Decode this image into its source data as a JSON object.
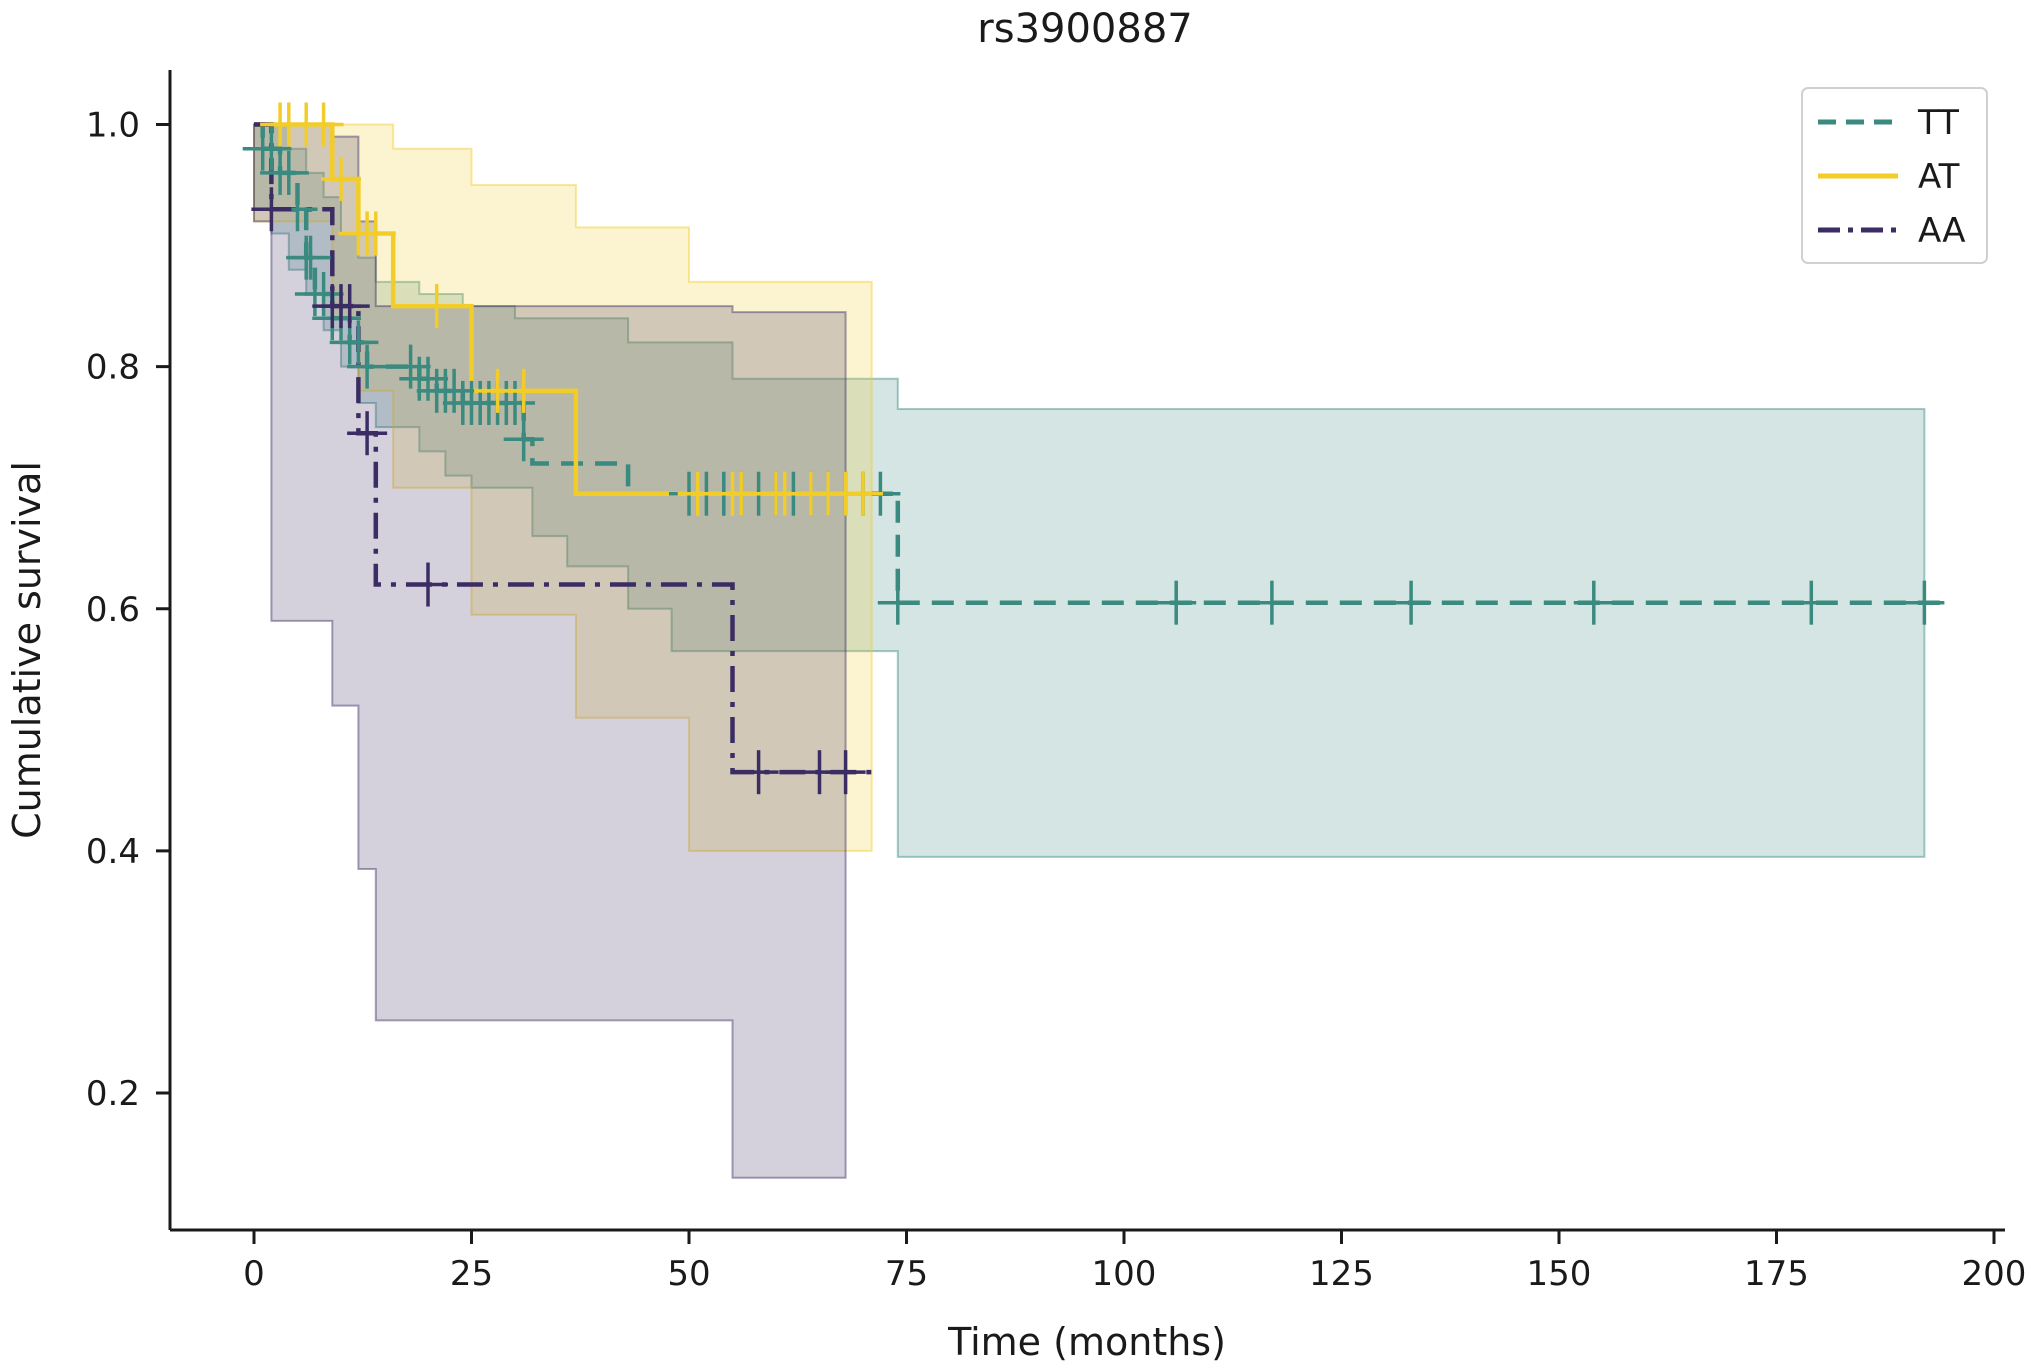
{
  "chart_data": {
    "type": "line",
    "title": "rs3900887",
    "xlabel": "Time (months)",
    "ylabel": "Cumulative survival",
    "xlim": [
      -10,
      202
    ],
    "ylim": [
      0.1,
      1.05
    ],
    "xticks": [
      0,
      25,
      50,
      75,
      100,
      125,
      150,
      175,
      200
    ],
    "yticks": [
      0.2,
      0.4,
      0.6,
      0.8,
      1.0
    ],
    "xtick_labels": [
      "0",
      "25",
      "50",
      "75",
      "100",
      "125",
      "150",
      "175",
      "200"
    ],
    "ytick_labels": [
      "0.2",
      "0.4",
      "0.6",
      "0.8",
      "1.0"
    ],
    "grid": false,
    "legend_position": "top-right",
    "series": [
      {
        "name": "TT",
        "color": "#3a8a80",
        "line_style": "dashed",
        "steps": [
          [
            0,
            1.0
          ],
          [
            1,
            0.98
          ],
          [
            3,
            0.96
          ],
          [
            5,
            0.93
          ],
          [
            6,
            0.89
          ],
          [
            7,
            0.86
          ],
          [
            9,
            0.84
          ],
          [
            11,
            0.82
          ],
          [
            13,
            0.8
          ],
          [
            19,
            0.79
          ],
          [
            21,
            0.78
          ],
          [
            24,
            0.77
          ],
          [
            31,
            0.74
          ],
          [
            32,
            0.72
          ],
          [
            43,
            0.695
          ],
          [
            74,
            0.605
          ],
          [
            195,
            0.605
          ]
        ],
        "ci_upper": [
          [
            0,
            1.0
          ],
          [
            2,
            1.0
          ],
          [
            4,
            0.98
          ],
          [
            6,
            0.96
          ],
          [
            8,
            0.94
          ],
          [
            10,
            0.91
          ],
          [
            12,
            0.89
          ],
          [
            14,
            0.87
          ],
          [
            19,
            0.86
          ],
          [
            24,
            0.85
          ],
          [
            30,
            0.84
          ],
          [
            43,
            0.82
          ],
          [
            55,
            0.79
          ],
          [
            74,
            0.765
          ],
          [
            192,
            0.765
          ]
        ],
        "ci_lower": [
          [
            0,
            0.93
          ],
          [
            2,
            0.91
          ],
          [
            4,
            0.88
          ],
          [
            6,
            0.86
          ],
          [
            8,
            0.83
          ],
          [
            10,
            0.8
          ],
          [
            12,
            0.77
          ],
          [
            14,
            0.75
          ],
          [
            19,
            0.73
          ],
          [
            22,
            0.71
          ],
          [
            25,
            0.7
          ],
          [
            32,
            0.66
          ],
          [
            36,
            0.635
          ],
          [
            43,
            0.6
          ],
          [
            48,
            0.565
          ],
          [
            74,
            0.395
          ],
          [
            192,
            0.395
          ]
        ],
        "censor_times": [
          1,
          2,
          3,
          4,
          5,
          6,
          6.5,
          7,
          8,
          9,
          10,
          11,
          12,
          13,
          18,
          19,
          20,
          21,
          22,
          23,
          24,
          25,
          26,
          27,
          28,
          29,
          30,
          31,
          50,
          52,
          54,
          56,
          58,
          60,
          62,
          64,
          66,
          68,
          70,
          72,
          74,
          106,
          117,
          133,
          154,
          179,
          192
        ]
      },
      {
        "name": "AT",
        "color": "#f2cd2a",
        "line_style": "solid",
        "steps": [
          [
            0,
            1.0
          ],
          [
            9,
            0.955
          ],
          [
            12,
            0.91
          ],
          [
            16,
            0.85
          ],
          [
            25,
            0.78
          ],
          [
            37,
            0.695
          ],
          [
            71,
            0.695
          ]
        ],
        "ci_upper": [
          [
            0,
            1.0
          ],
          [
            16,
            0.98
          ],
          [
            25,
            0.95
          ],
          [
            37,
            0.915
          ],
          [
            50,
            0.87
          ],
          [
            71,
            0.87
          ]
        ],
        "ci_lower": [
          [
            0,
            0.92
          ],
          [
            9,
            0.84
          ],
          [
            12,
            0.78
          ],
          [
            16,
            0.7
          ],
          [
            25,
            0.595
          ],
          [
            37,
            0.51
          ],
          [
            50,
            0.4
          ],
          [
            71,
            0.4
          ]
        ],
        "censor_times": [
          3,
          4,
          6,
          8,
          10,
          12,
          13,
          14,
          21,
          28,
          31,
          51,
          55,
          56,
          60,
          61,
          64,
          66,
          68,
          70
        ]
      },
      {
        "name": "AA",
        "color": "#3b2d63",
        "line_style": "dashdot",
        "steps": [
          [
            0,
            1.0
          ],
          [
            2,
            0.93
          ],
          [
            9,
            0.85
          ],
          [
            12,
            0.745
          ],
          [
            14,
            0.62
          ],
          [
            55,
            0.465
          ],
          [
            71,
            0.465
          ]
        ],
        "ci_upper": [
          [
            0,
            1.0
          ],
          [
            9,
            0.99
          ],
          [
            12,
            0.92
          ],
          [
            14,
            0.85
          ],
          [
            34,
            0.85
          ],
          [
            55,
            0.845
          ],
          [
            68,
            0.75
          ]
        ],
        "ci_lower": [
          [
            0,
            0.92
          ],
          [
            2,
            0.59
          ],
          [
            9,
            0.52
          ],
          [
            12,
            0.385
          ],
          [
            14,
            0.26
          ],
          [
            55,
            0.13
          ],
          [
            68,
            0.13
          ]
        ],
        "censor_times": [
          2,
          9,
          10,
          11,
          13,
          20,
          58,
          65,
          68
        ]
      }
    ]
  }
}
